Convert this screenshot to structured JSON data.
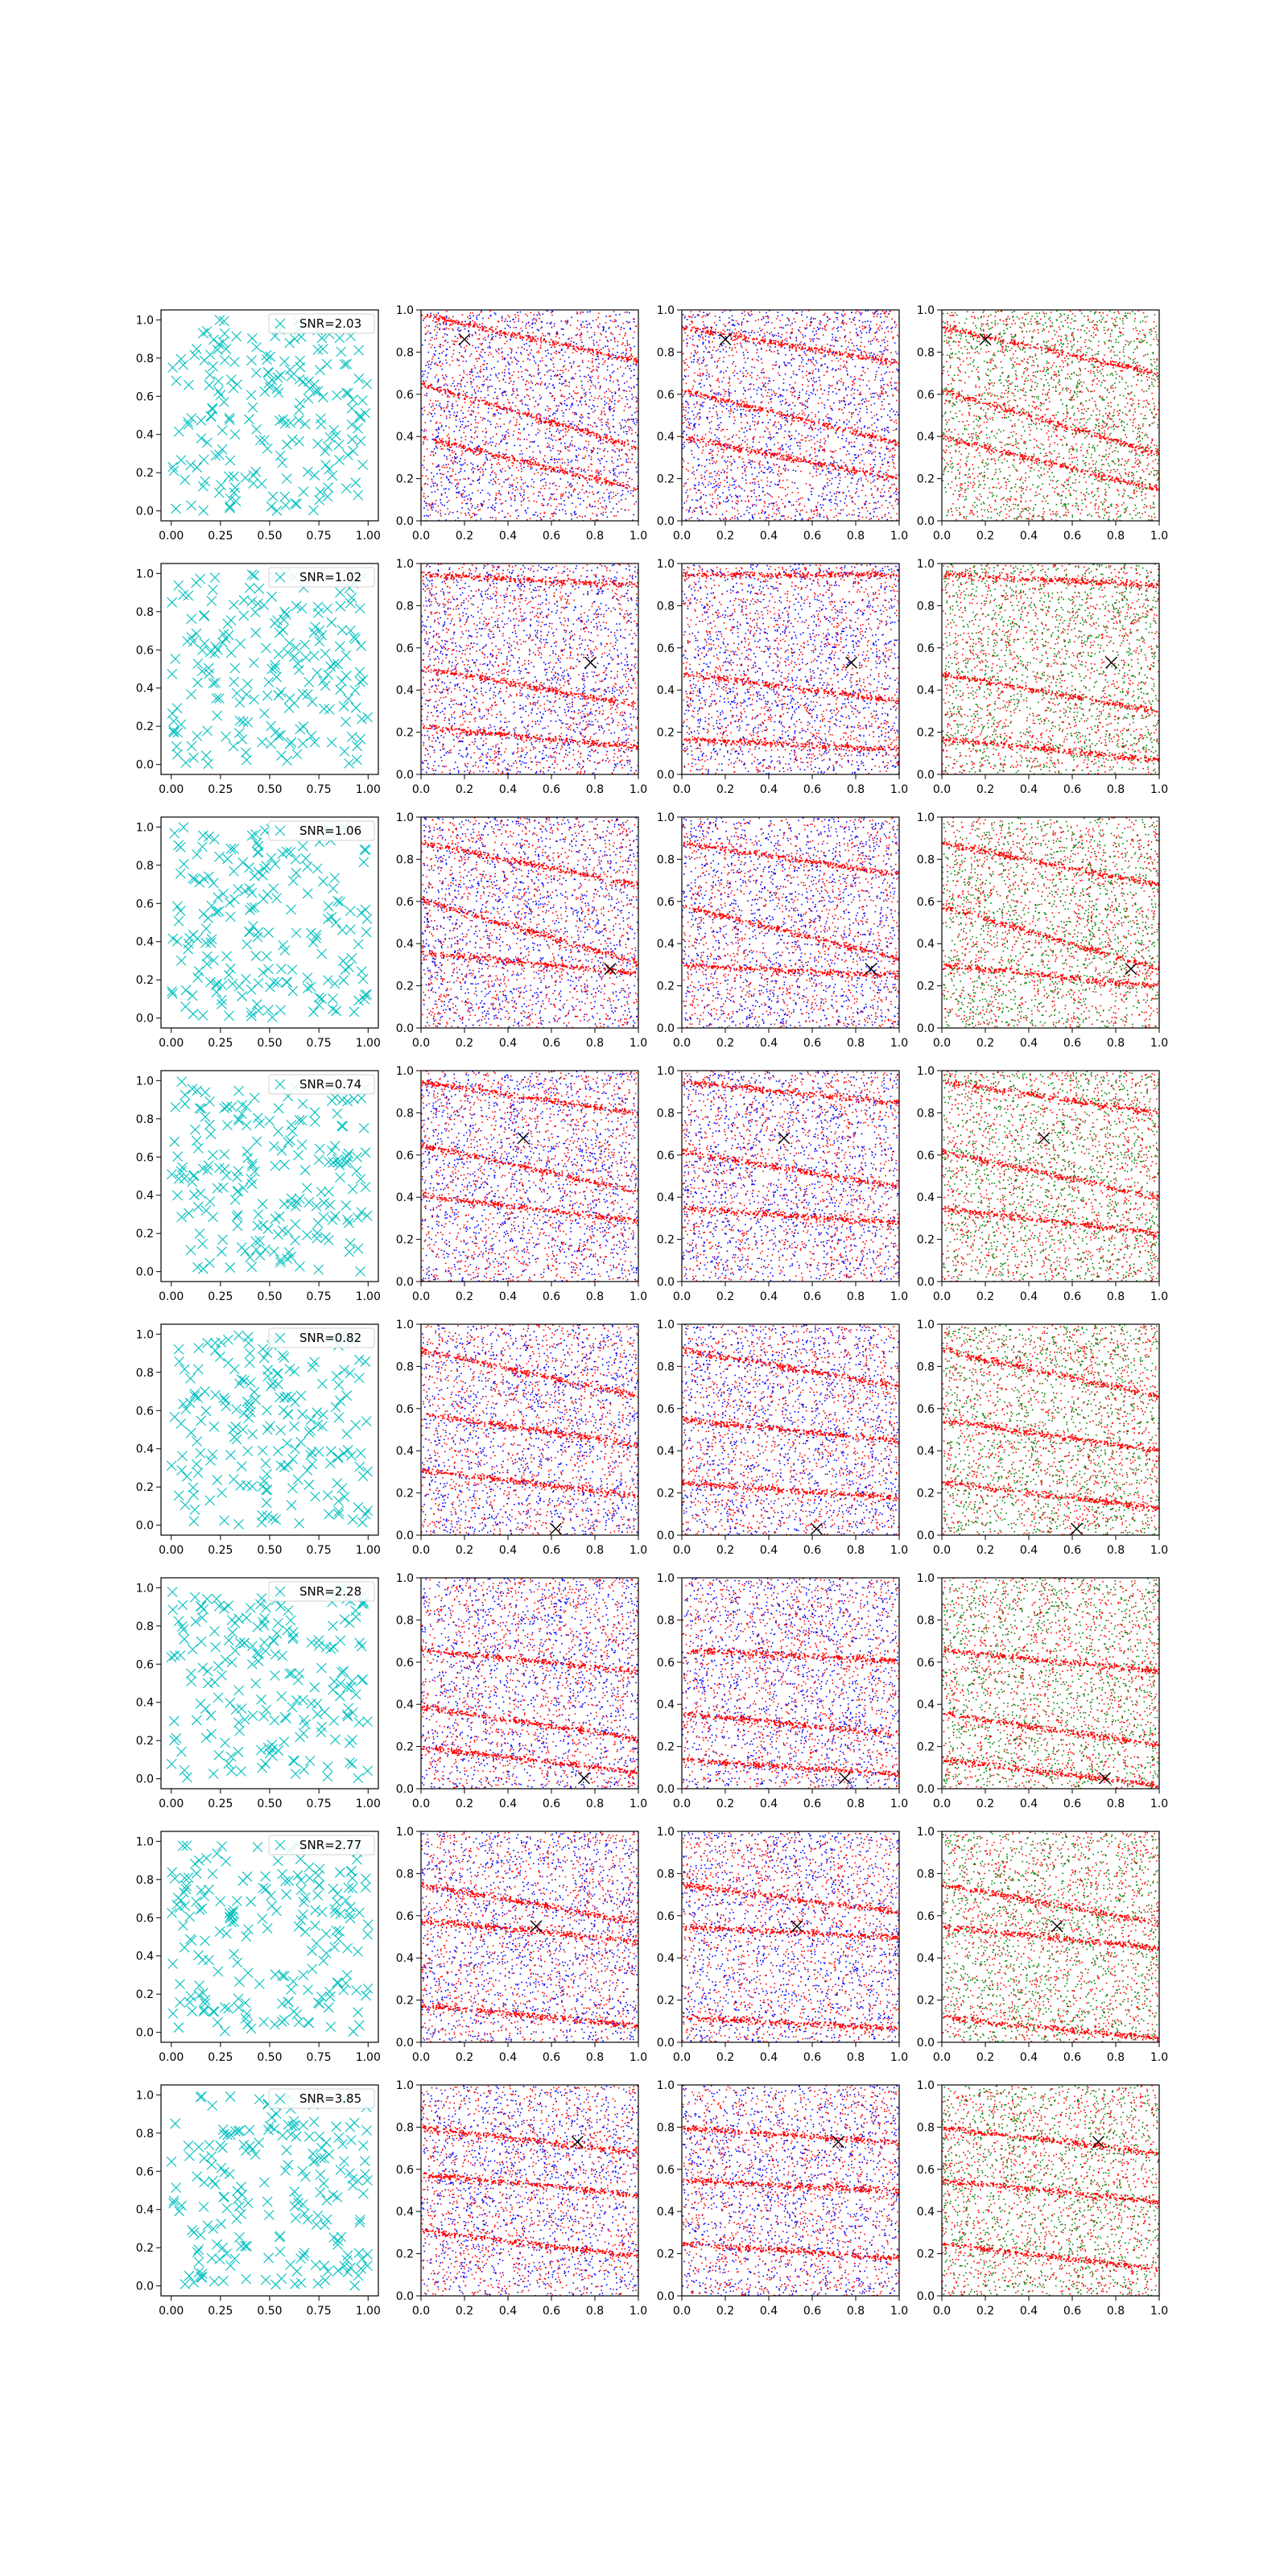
{
  "figure": {
    "rows": 8,
    "columns": 4
  },
  "colors": {
    "cyan_marker": "#00bfbf",
    "red_points": "#ff0000",
    "blue_points": "#0000ff",
    "green_points": "#008000",
    "black_marker": "#000000",
    "axes": "#000000"
  },
  "chart_data": {
    "type": "scatter",
    "grid": false,
    "xlim": [
      0,
      1
    ],
    "ylim": [
      0,
      1
    ],
    "first_column_ticks": [
      "0.00",
      "0.25",
      "0.50",
      "0.75",
      "1.00"
    ],
    "first_column_yticks": [
      "0.0",
      "0.2",
      "0.4",
      "0.6",
      "0.8",
      "1.0"
    ],
    "other_column_xticks": [
      "0.0",
      "0.2",
      "0.4",
      "0.6",
      "0.8",
      "1.0"
    ],
    "other_column_yticks": [
      "0.0",
      "0.2",
      "0.4",
      "0.6",
      "0.8",
      "1.0"
    ],
    "legend_placement": "upper-right",
    "column_descriptions": [
      "cyan x markers with SNR legend",
      "red and blue points with black x marker",
      "red and blue points with black x marker",
      "red and green points with black x marker"
    ],
    "rows": [
      {
        "legend": "SNR=2.03",
        "marker": [
          0.2,
          0.86
        ],
        "stripes": [
          [
            0.4,
            -0.25
          ],
          [
            0.62,
            -0.3
          ],
          [
            0.92,
            -0.22
          ]
        ]
      },
      {
        "legend": "SNR=1.02",
        "marker": [
          0.78,
          0.53
        ],
        "stripes": [
          [
            0.95,
            -0.05
          ],
          [
            0.48,
            -0.18
          ],
          [
            0.17,
            -0.1
          ]
        ]
      },
      {
        "legend": "SNR=1.06",
        "marker": [
          0.87,
          0.28
        ],
        "stripes": [
          [
            0.88,
            -0.2
          ],
          [
            0.58,
            -0.3
          ],
          [
            0.3,
            -0.1
          ]
        ]
      },
      {
        "legend": "SNR=0.74",
        "marker": [
          0.47,
          0.68
        ],
        "stripes": [
          [
            0.95,
            -0.15
          ],
          [
            0.62,
            -0.22
          ],
          [
            0.35,
            -0.12
          ]
        ]
      },
      {
        "legend": "SNR=0.82",
        "marker": [
          0.62,
          0.03
        ],
        "stripes": [
          [
            0.88,
            -0.22
          ],
          [
            0.55,
            -0.15
          ],
          [
            0.25,
            -0.12
          ]
        ]
      },
      {
        "legend": "SNR=2.28",
        "marker": [
          0.75,
          0.05
        ],
        "stripes": [
          [
            0.66,
            -0.1
          ],
          [
            0.36,
            -0.15
          ],
          [
            0.14,
            -0.12
          ]
        ]
      },
      {
        "legend": "SNR=2.77",
        "marker": [
          0.53,
          0.55
        ],
        "stripes": [
          [
            0.75,
            -0.18
          ],
          [
            0.55,
            -0.1
          ],
          [
            0.12,
            -0.1
          ]
        ]
      },
      {
        "legend": "SNR=3.85",
        "marker": [
          0.72,
          0.73
        ],
        "stripes": [
          [
            0.8,
            -0.12
          ],
          [
            0.55,
            -0.1
          ],
          [
            0.25,
            -0.12
          ]
        ]
      }
    ]
  }
}
